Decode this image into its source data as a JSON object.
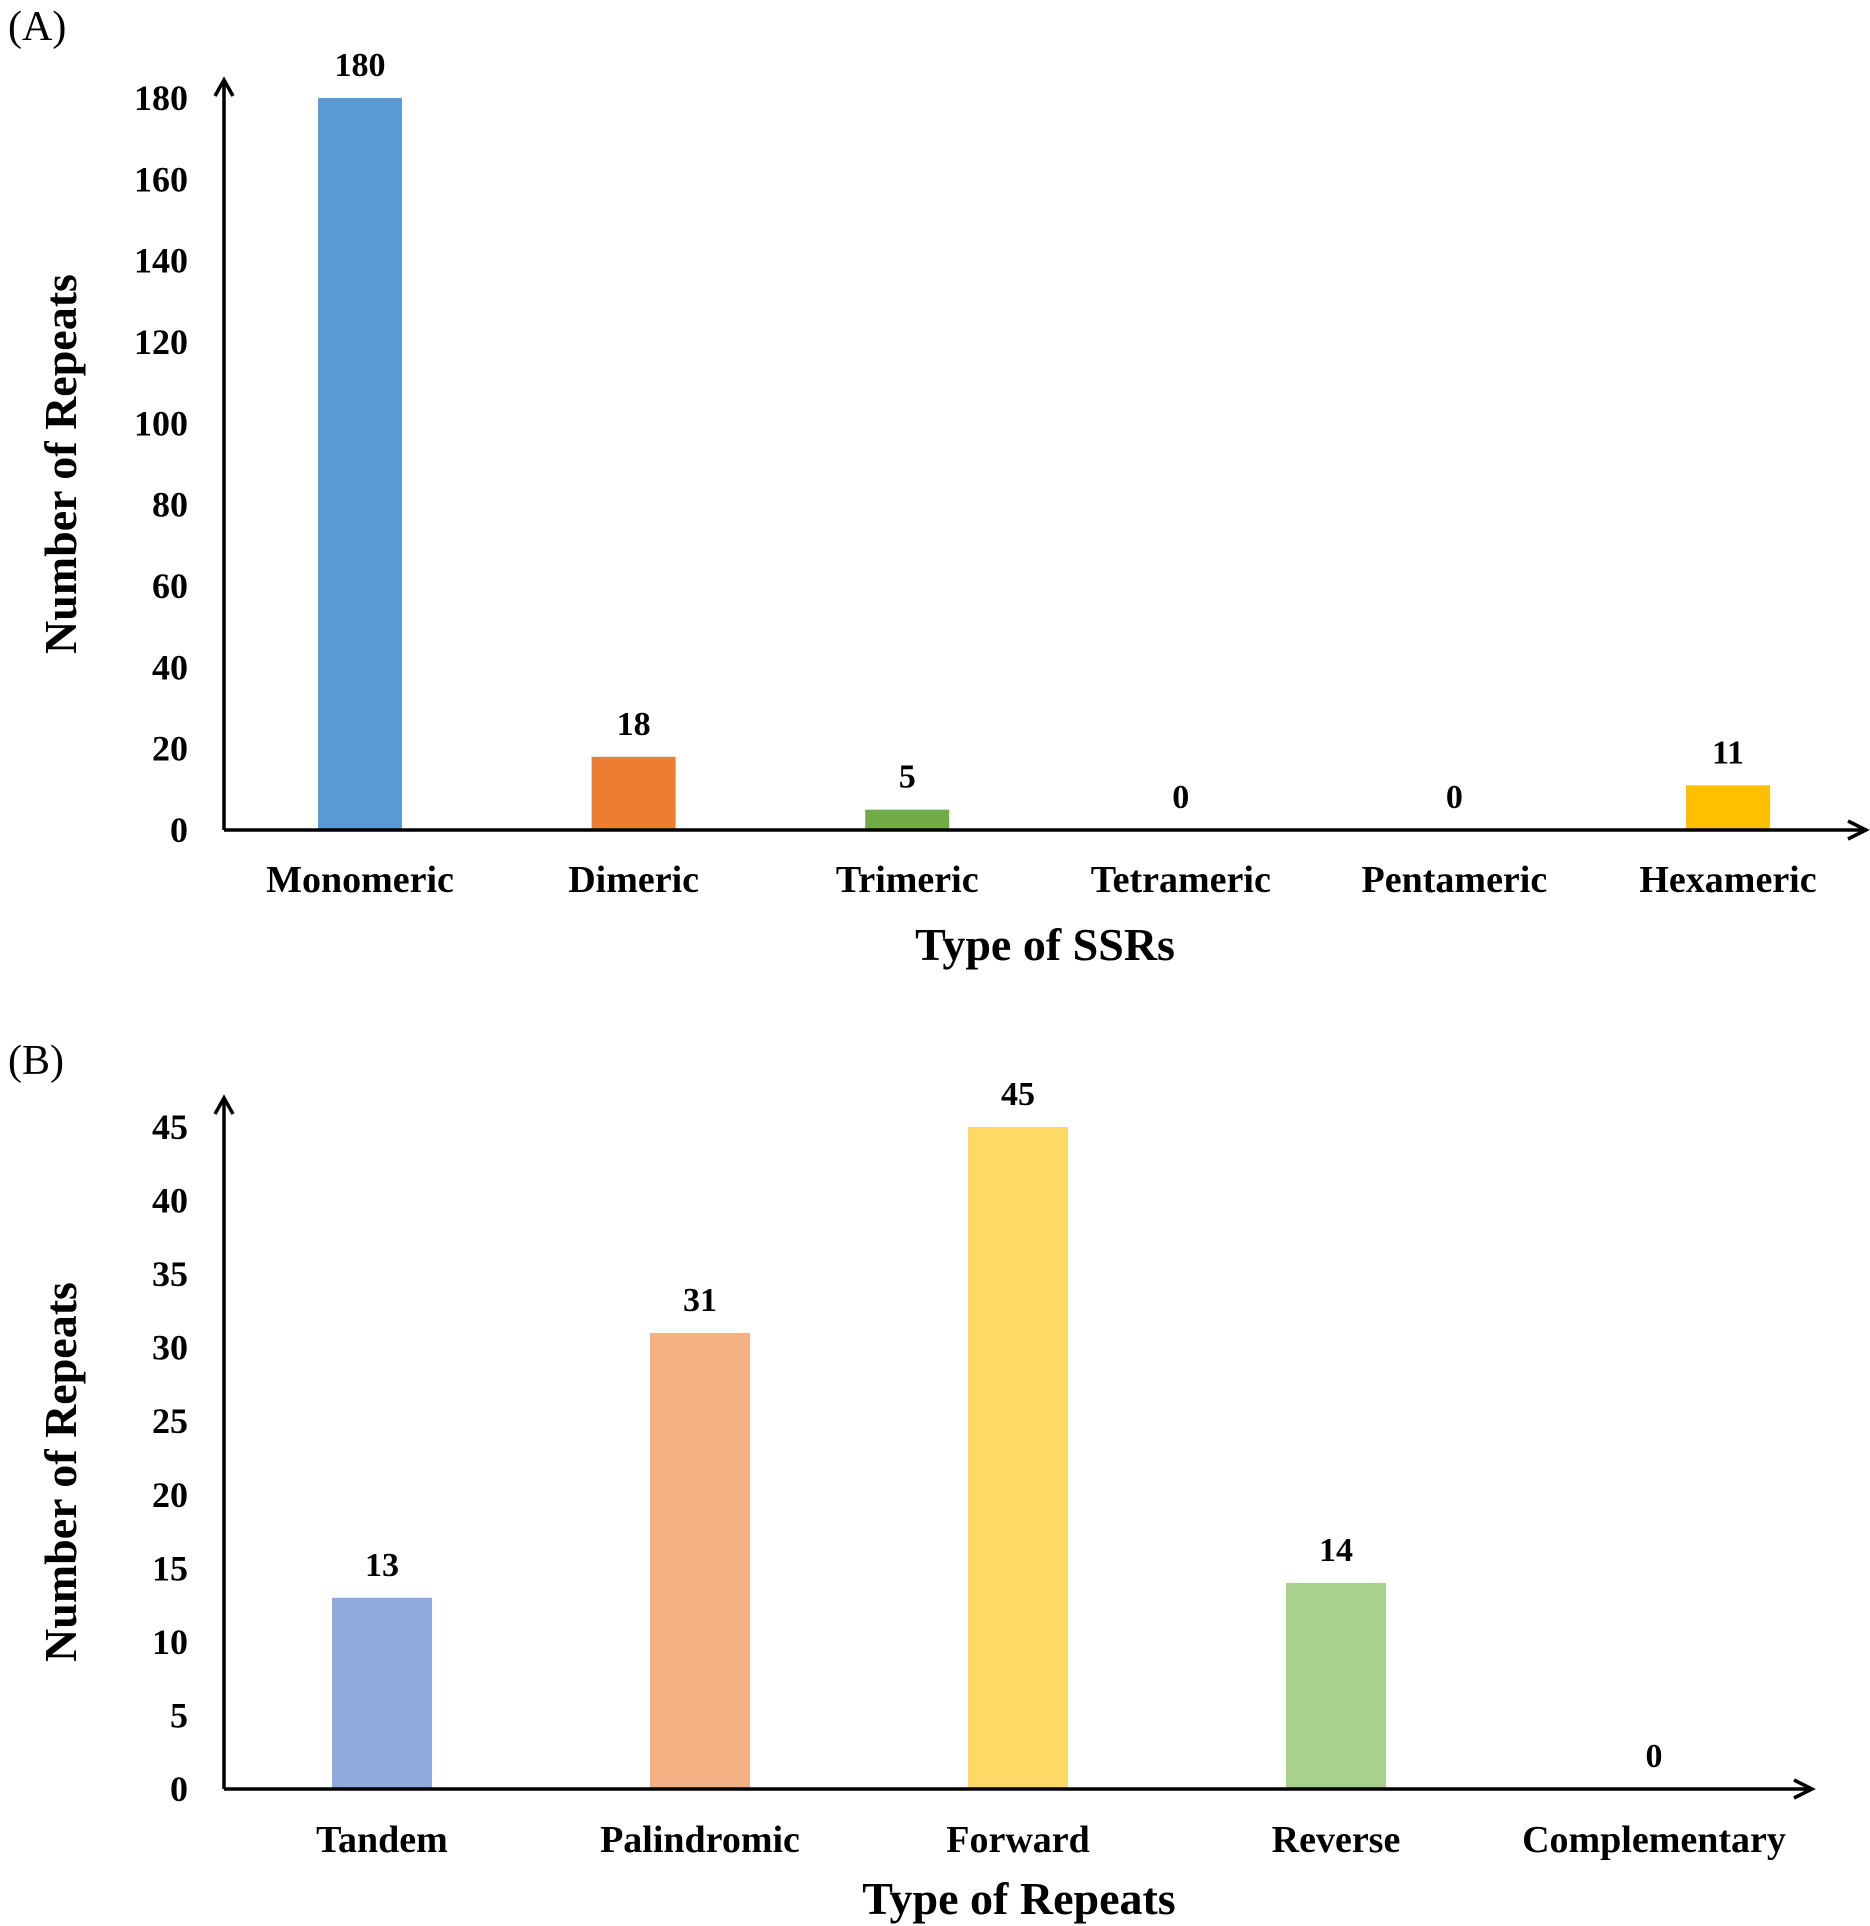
{
  "chart_data": [
    {
      "panel": "(A)",
      "type": "bar",
      "categories": [
        "Monomeric",
        "Dimeric",
        "Trimeric",
        "Tetrameric",
        "Pentameric",
        "Hexameric"
      ],
      "values": [
        180,
        18,
        5,
        0,
        0,
        11
      ],
      "colors": [
        "#5B9BD5",
        "#ED7D31",
        "#70AD47",
        "#A5A5A5",
        "#4472C4",
        "#FFC000"
      ],
      "xlabel": "Type of SSRs",
      "ylabel": "Number of Repeats",
      "ylim": [
        0,
        180
      ],
      "yticks": [
        0,
        20,
        40,
        60,
        80,
        100,
        120,
        140,
        160,
        180
      ]
    },
    {
      "panel": "(B)",
      "type": "bar",
      "categories": [
        "Tandem",
        "Palindromic",
        "Forward",
        "Reverse",
        "Complementary"
      ],
      "values": [
        13,
        31,
        45,
        14,
        0
      ],
      "colors": [
        "#8FAADC",
        "#F4B183",
        "#FFD966",
        "#A9D18E",
        "#9DC3E6"
      ],
      "xlabel": "Type of Repeats",
      "ylabel": "Number of Repeats",
      "ylim": [
        0,
        45
      ],
      "yticks": [
        0,
        5,
        10,
        15,
        20,
        25,
        30,
        35,
        40,
        45
      ]
    }
  ]
}
